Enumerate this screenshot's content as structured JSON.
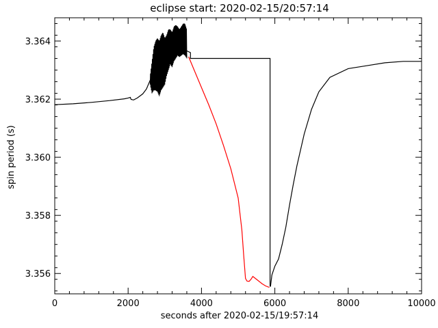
{
  "chart_data": {
    "type": "line",
    "title": "eclipse start: 2020-02-15/20:57:14",
    "xlabel": "seconds after 2020-02-15/19:57:14",
    "ylabel": "spin period (s)",
    "xlim": [
      0,
      10000
    ],
    "ylim": [
      3.3553,
      3.3648
    ],
    "x_ticks": [
      0,
      2000,
      4000,
      6000,
      8000,
      10000
    ],
    "x_tick_labels": [
      "0",
      "2000",
      "4000",
      "6000",
      "8000",
      "10000"
    ],
    "y_ticks": [
      3.356,
      3.358,
      3.36,
      3.362,
      3.364
    ],
    "y_tick_labels": [
      "3.356",
      "3.358",
      "3.360",
      "3.362",
      "3.364"
    ],
    "grid": false,
    "legend": "none",
    "series": [
      {
        "color": "#000000",
        "values": [
          [
            0,
            3.36181
          ],
          [
            500,
            3.36184
          ],
          [
            1000,
            3.36189
          ],
          [
            1500,
            3.36195
          ],
          [
            1900,
            3.36201
          ],
          [
            2000,
            3.36204
          ],
          [
            2060,
            3.36206
          ],
          [
            2080,
            3.36199
          ],
          [
            2150,
            3.36197
          ],
          [
            2250,
            3.36204
          ],
          [
            2400,
            3.36218
          ],
          [
            2500,
            3.36235
          ],
          [
            2600,
            3.36265
          ],
          [
            2700,
            3.36285
          ],
          [
            2800,
            3.36305
          ],
          [
            2900,
            3.36315
          ],
          [
            3000,
            3.36322
          ],
          [
            3100,
            3.36335
          ],
          [
            3200,
            3.36345
          ],
          [
            3300,
            3.36355
          ],
          [
            3400,
            3.36362
          ],
          [
            3500,
            3.36366
          ],
          [
            3600,
            3.36366
          ],
          [
            3700,
            3.3636
          ],
          [
            3700,
            3.3634
          ],
          [
            5870,
            3.3634
          ],
          [
            5870,
            3.35555
          ]
        ]
      },
      {
        "color": "#000000",
        "values": [
          [
            5880,
            3.35555
          ],
          [
            5920,
            3.35595
          ],
          [
            6000,
            3.35625
          ],
          [
            6100,
            3.3565
          ],
          [
            6200,
            3.357
          ],
          [
            6300,
            3.3576
          ],
          [
            6400,
            3.35835
          ],
          [
            6500,
            3.35905
          ],
          [
            6600,
            3.3597
          ],
          [
            6800,
            3.3608
          ],
          [
            7000,
            3.36165
          ],
          [
            7200,
            3.36225
          ],
          [
            7500,
            3.36275
          ],
          [
            8000,
            3.36305
          ],
          [
            8500,
            3.36315
          ],
          [
            9000,
            3.36325
          ],
          [
            9500,
            3.3633
          ],
          [
            10000,
            3.3633
          ]
        ]
      },
      {
        "color": "#ff0000",
        "values": [
          [
            3650,
            3.36346
          ],
          [
            3800,
            3.363
          ],
          [
            4000,
            3.3624
          ],
          [
            4200,
            3.3618
          ],
          [
            4400,
            3.36115
          ],
          [
            4600,
            3.3604
          ],
          [
            4800,
            3.3596
          ],
          [
            5000,
            3.3586
          ],
          [
            5100,
            3.3575
          ],
          [
            5150,
            3.35665
          ],
          [
            5200,
            3.35583
          ],
          [
            5240,
            3.35574
          ],
          [
            5300,
            3.35573
          ],
          [
            5350,
            3.3558
          ],
          [
            5400,
            3.3559
          ],
          [
            5450,
            3.35585
          ],
          [
            5550,
            3.35575
          ],
          [
            5650,
            3.35565
          ],
          [
            5750,
            3.35557
          ],
          [
            5850,
            3.35552
          ]
        ]
      },
      {
        "color": "#000000",
        "style": "noisy",
        "values": [
          [
            2600,
            3.3625,
            3.3628
          ],
          [
            2650,
            3.3622,
            3.3633
          ],
          [
            2700,
            3.3623,
            3.3638
          ],
          [
            2750,
            3.3623,
            3.364
          ],
          [
            2800,
            3.36225,
            3.3641
          ],
          [
            2850,
            3.3621,
            3.364
          ],
          [
            2900,
            3.3623,
            3.3642
          ],
          [
            2950,
            3.3624,
            3.3643
          ],
          [
            3000,
            3.3625,
            3.3641
          ],
          [
            3050,
            3.3628,
            3.3642
          ],
          [
            3100,
            3.363,
            3.3644
          ],
          [
            3150,
            3.3632,
            3.3644
          ],
          [
            3200,
            3.3631,
            3.3643
          ],
          [
            3250,
            3.3633,
            3.3645
          ],
          [
            3300,
            3.3634,
            3.36455
          ],
          [
            3350,
            3.3635,
            3.3645
          ],
          [
            3400,
            3.36345,
            3.3644
          ],
          [
            3450,
            3.3635,
            3.3645
          ],
          [
            3500,
            3.36355,
            3.3646
          ],
          [
            3550,
            3.3635,
            3.3646
          ],
          [
            3600,
            3.3634,
            3.3644
          ]
        ]
      }
    ]
  }
}
